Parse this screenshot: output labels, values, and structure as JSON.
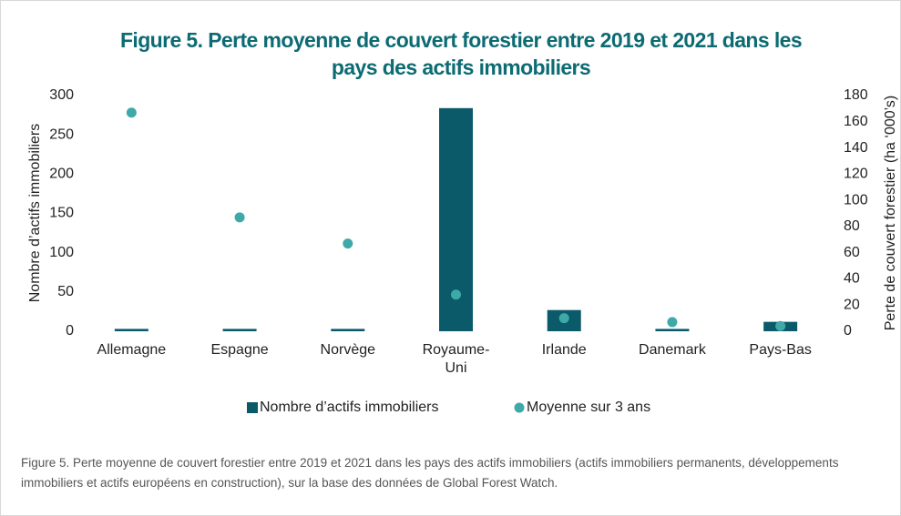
{
  "chart_data": {
    "type": "bar_dot",
    "title": "Figure 5. Perte moyenne de couvert forestier entre 2019 et 2021 dans les pays des actifs immobiliers",
    "categories": [
      "Allemagne",
      "Espagne",
      "Norvège",
      "Royaume-Uni",
      "Irlande",
      "Danemark",
      "Pays-Bas"
    ],
    "series": [
      {
        "name": "Nombre d’actifs immobiliers",
        "color": "#0b5a6a",
        "values": [
          3,
          3,
          3,
          284,
          27,
          3,
          12
        ]
      },
      {
        "name": "Moyenne sur 3 ans",
        "color": "#3fa9a9",
        "axis": "y2",
        "values": [
          167,
          87,
          67,
          28,
          10,
          7,
          4
        ]
      }
    ],
    "ylabel": "Nombre d’actifs immobiliers",
    "y2label": "Perte de couvert forestier (ha ‘000’s)",
    "ylim": [
      0,
      300
    ],
    "yticks": [
      0,
      50,
      100,
      150,
      200,
      250,
      300
    ],
    "y2lim": [
      0,
      180
    ],
    "y2ticks": [
      0,
      20,
      40,
      60,
      80,
      100,
      120,
      140,
      160,
      180
    ],
    "caption": "Figure 5. Perte moyenne de couvert forestier entre 2019 et 2021 dans les pays des actifs immobiliers (actifs immobiliers permanents, développements immobiliers et actifs européens en construction), sur la base des données de Global Forest Watch."
  }
}
